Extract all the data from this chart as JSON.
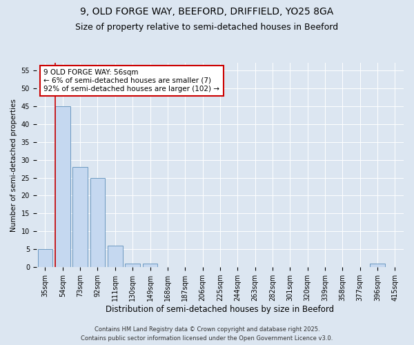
{
  "title1": "9, OLD FORGE WAY, BEEFORD, DRIFFIELD, YO25 8GA",
  "title2": "Size of property relative to semi-detached houses in Beeford",
  "xlabel": "Distribution of semi-detached houses by size in Beeford",
  "ylabel": "Number of semi-detached properties",
  "categories": [
    "35sqm",
    "54sqm",
    "73sqm",
    "92sqm",
    "111sqm",
    "130sqm",
    "149sqm",
    "168sqm",
    "187sqm",
    "206sqm",
    "225sqm",
    "244sqm",
    "263sqm",
    "282sqm",
    "301sqm",
    "320sqm",
    "339sqm",
    "358sqm",
    "377sqm",
    "396sqm",
    "415sqm"
  ],
  "values": [
    5,
    45,
    28,
    25,
    6,
    1,
    1,
    0,
    0,
    0,
    0,
    0,
    0,
    0,
    0,
    0,
    0,
    0,
    0,
    1,
    0
  ],
  "bar_color": "#c5d8f0",
  "bar_edge_color": "#5b8db8",
  "vline_color": "#cc0000",
  "vline_x_index": 1,
  "annotation_text": "9 OLD FORGE WAY: 56sqm\n← 6% of semi-detached houses are smaller (7)\n92% of semi-detached houses are larger (102) →",
  "annotation_box_color": "#ffffff",
  "annotation_box_edge_color": "#cc0000",
  "ylim": [
    0,
    57
  ],
  "yticks": [
    0,
    5,
    10,
    15,
    20,
    25,
    30,
    35,
    40,
    45,
    50,
    55
  ],
  "bg_color": "#dce6f1",
  "plot_bg_color": "#dce6f1",
  "grid_color": "#ffffff",
  "footer_text": "Contains HM Land Registry data © Crown copyright and database right 2025.\nContains public sector information licensed under the Open Government Licence v3.0.",
  "title1_fontsize": 10,
  "title2_fontsize": 9,
  "xlabel_fontsize": 8.5,
  "ylabel_fontsize": 7.5,
  "tick_fontsize": 7,
  "annotation_fontsize": 7.5,
  "footer_fontsize": 6
}
